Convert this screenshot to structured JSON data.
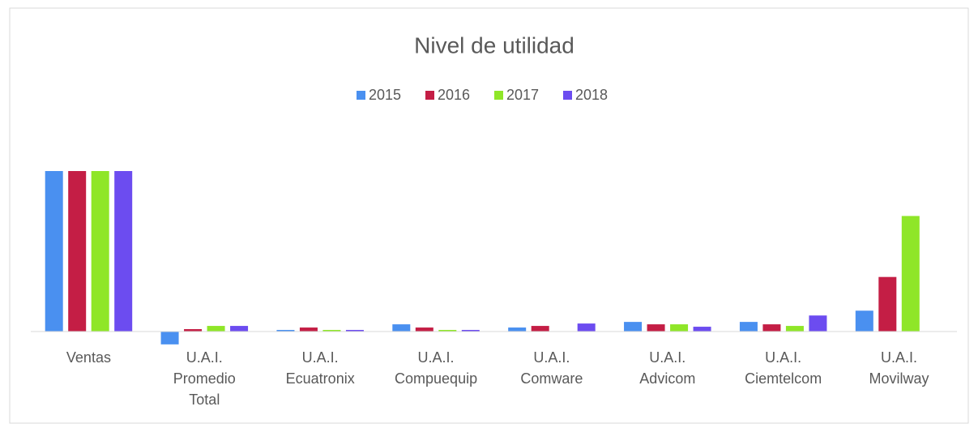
{
  "chart_data": {
    "type": "bar",
    "title": "Nivel de utilidad",
    "categories": [
      "Ventas",
      "U.A.I. Promedio Total",
      "U.A.I. Ecuatronix",
      "U.A.I. Compuequip",
      "U.A.I. Comware",
      "U.A.I. Advicom",
      "U.A.I. Ciemtelcom",
      "U.A.I. Movilway"
    ],
    "series": [
      {
        "name": "2015",
        "color": "#4a90f0",
        "values": [
          100,
          -8,
          1,
          4.5,
          2.5,
          6,
          6,
          13
        ]
      },
      {
        "name": "2016",
        "color": "#c41e45",
        "values": [
          100,
          1.5,
          2.5,
          2.5,
          3.5,
          4.5,
          4.5,
          34
        ]
      },
      {
        "name": "2017",
        "color": "#8fe628",
        "values": [
          100,
          3.5,
          1,
          1,
          0,
          4.5,
          3.5,
          72
        ]
      },
      {
        "name": "2018",
        "color": "#6c4cf0",
        "values": [
          100,
          3.5,
          1,
          1,
          5,
          3,
          10,
          0
        ]
      }
    ],
    "legend": "top"
  }
}
